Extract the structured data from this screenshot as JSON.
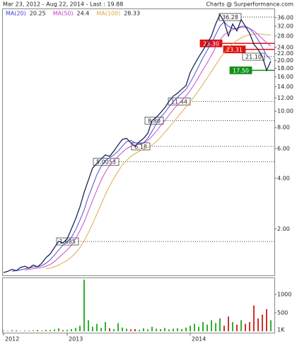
{
  "chart_data": [
    {
      "type": "line",
      "title": "Mar 23, 2012 - Aug 22, 2014 - Last : 19.88",
      "source": "Charts @ Surperformance.com",
      "log_scale": true,
      "xlim": [
        0,
        63
      ],
      "xticks": [
        {
          "value": 0,
          "label": "2012"
        },
        {
          "value": 15,
          "label": "2013"
        },
        {
          "value": 44,
          "label": "2014"
        }
      ],
      "ylim": [
        1.07,
        40
      ],
      "yticks": [
        {
          "value": 36,
          "label": "36.00"
        },
        {
          "value": 32,
          "label": "32.00"
        },
        {
          "value": 28,
          "label": "28.00"
        },
        {
          "value": 24,
          "label": "24.00"
        },
        {
          "value": 22,
          "label": "22.00"
        },
        {
          "value": 20,
          "label": "20.00"
        },
        {
          "value": 18,
          "label": "18.00"
        },
        {
          "value": 16,
          "label": "16.00"
        },
        {
          "value": 14,
          "label": "14.00"
        },
        {
          "value": 12,
          "label": "12.00"
        },
        {
          "value": 10,
          "label": "10.00"
        },
        {
          "value": 8,
          "label": "8.00"
        },
        {
          "value": 6,
          "label": "6.00"
        },
        {
          "value": 4,
          "label": "4.00"
        },
        {
          "value": 2,
          "label": "2.00"
        }
      ],
      "series": [
        {
          "color": "#1c2750",
          "values": [
            1.1,
            1.12,
            1.15,
            1.13,
            1.18,
            1.2,
            1.17,
            1.22,
            1.19,
            1.25,
            1.35,
            1.42,
            1.55,
            1.69,
            1.65,
            1.75,
            2.0,
            2.3,
            2.7,
            3.3,
            3.9,
            4.6,
            4.9,
            5.2,
            5.5,
            5.4,
            5.8,
            6.3,
            6.8,
            6.9,
            6.5,
            6.18,
            6.6,
            6.9,
            7.4,
            8.8,
            9.2,
            9.8,
            10.5,
            11.44,
            12.3,
            12.8,
            13.5,
            14.2,
            17,
            19,
            21,
            23,
            25.3,
            28,
            33,
            37.5,
            34,
            28,
            33,
            30,
            35,
            32,
            29,
            25,
            23.3,
            21.1,
            17.5,
            19.88
          ]
        },
        {
          "name": "MA(20)",
          "last": 20.25,
          "color": "#3b3bd0",
          "values": [
            null,
            null,
            1.12,
            1.13,
            1.14,
            1.16,
            1.17,
            1.19,
            1.19,
            1.21,
            1.25,
            1.31,
            1.4,
            1.5,
            1.6,
            1.68,
            1.78,
            1.98,
            2.25,
            2.6,
            3.1,
            3.6,
            4.2,
            4.7,
            5.1,
            5.3,
            5.5,
            5.8,
            6.2,
            6.6,
            6.7,
            6.5,
            6.4,
            6.5,
            6.9,
            7.6,
            8.4,
            9.2,
            9.8,
            10.6,
            11.4,
            12.1,
            12.8,
            13.5,
            14.8,
            16.5,
            18.5,
            20.8,
            23,
            25.5,
            28.5,
            32,
            34,
            32,
            31,
            31,
            32,
            32,
            31,
            29,
            26.5,
            24,
            21.5,
            20.25
          ]
        },
        {
          "name": "MA(50)",
          "last": 24.4,
          "color": "#c040c0",
          "values": [
            null,
            null,
            null,
            null,
            null,
            1.14,
            1.15,
            1.16,
            1.17,
            1.18,
            1.2,
            1.23,
            1.28,
            1.35,
            1.42,
            1.5,
            1.6,
            1.75,
            1.95,
            2.2,
            2.55,
            2.95,
            3.4,
            3.9,
            4.35,
            4.75,
            5.1,
            5.4,
            5.7,
            6.0,
            6.2,
            6.3,
            6.35,
            6.45,
            6.7,
            7.1,
            7.6,
            8.2,
            8.8,
            9.5,
            10.2,
            10.9,
            11.6,
            12.3,
            13.3,
            14.5,
            16,
            17.6,
            19.4,
            21.5,
            24,
            26.5,
            28.5,
            29.5,
            30.5,
            31,
            31.5,
            31.5,
            31,
            30,
            28.5,
            27,
            25.5,
            24.4
          ]
        },
        {
          "name": "MA(100)",
          "last": 28.33,
          "color": "#e0a040",
          "values": [
            null,
            null,
            null,
            null,
            null,
            null,
            null,
            null,
            null,
            null,
            1.16,
            1.17,
            1.19,
            1.22,
            1.26,
            1.3,
            1.36,
            1.44,
            1.55,
            1.7,
            1.9,
            2.15,
            2.45,
            2.8,
            3.2,
            3.6,
            4.0,
            4.4,
            4.8,
            5.1,
            5.4,
            5.6,
            5.8,
            5.95,
            6.1,
            6.3,
            6.6,
            7.0,
            7.5,
            8.0,
            8.6,
            9.2,
            9.9,
            10.6,
            11.4,
            12.3,
            13.3,
            14.5,
            15.8,
            17.2,
            18.8,
            20.6,
            22.3,
            23.8,
            25.2,
            26.3,
            27.3,
            28.0,
            28.5,
            28.8,
            28.8,
            28.7,
            28.5,
            28.33
          ]
        }
      ],
      "levels": [
        {
          "value": 36.28,
          "color": "#000000"
        },
        {
          "value": 25.3,
          "label": "25.30",
          "color": "#e01010"
        },
        {
          "value": 23.31,
          "color": "#e01010"
        },
        {
          "value": 21.1,
          "label": "21.10",
          "color": "#000000"
        },
        {
          "value": 17.5,
          "label": "17.50",
          "color": "#10901a"
        },
        {
          "value": 11.44,
          "color": "#000000"
        },
        {
          "value": 8.8,
          "label": "8.80",
          "color": "#000000"
        },
        {
          "value": 6.18,
          "color": "#000000"
        },
        {
          "value": 5.0053,
          "color": "#000000"
        },
        {
          "value": 1.685,
          "color": "#000000"
        }
      ]
    },
    {
      "type": "bar",
      "unit": "1K",
      "ylim": [
        0,
        1400
      ],
      "yticks": [
        500,
        1000
      ],
      "up_color": "#30b030",
      "down_color": "#d03030",
      "values": [
        20,
        15,
        30,
        25,
        10,
        20,
        15,
        25,
        30,
        20,
        40,
        35,
        50,
        80,
        30,
        40,
        60,
        90,
        150,
        1400,
        300,
        120,
        200,
        90,
        250,
        80,
        60,
        220,
        100,
        70,
        50,
        60,
        40,
        80,
        50,
        120,
        70,
        60,
        90,
        50,
        70,
        80,
        60,
        100,
        150,
        200,
        120,
        250,
        180,
        300,
        220,
        350,
        150,
        400,
        250,
        180,
        300,
        200,
        250,
        700,
        350,
        450,
        600,
        300
      ]
    }
  ]
}
